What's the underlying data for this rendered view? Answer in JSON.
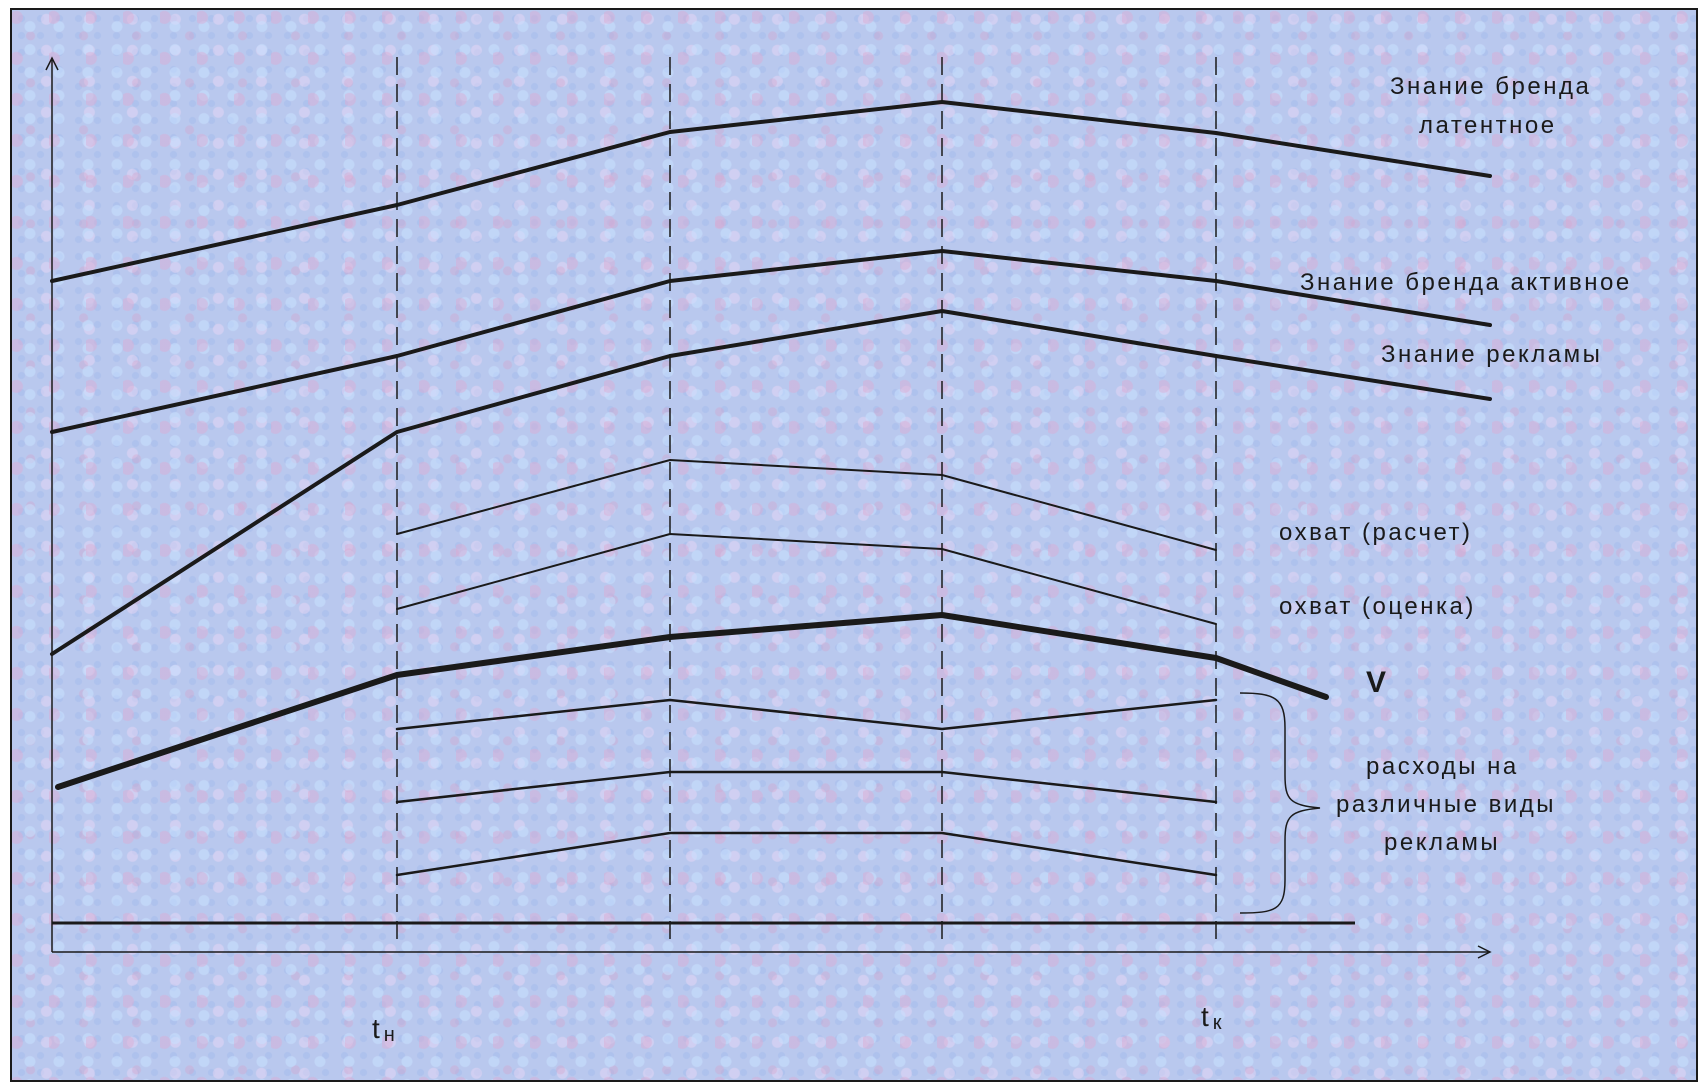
{
  "diagram": {
    "labels": {
      "brand_latent_1": "Знание бренда",
      "brand_latent_2": "латентное",
      "brand_active": "Знание бренда активное",
      "ad_awareness": "Знание рекламы",
      "reach_calc": "охват (расчет)",
      "reach_estimate": "охват (оценка)",
      "v": "V",
      "spend_1": "расходы на",
      "spend_2": "различные виды",
      "spend_3": "рекламы",
      "t_start_main": "t",
      "t_start_sub": "н",
      "t_end_main": "t",
      "t_end_sub": "к"
    }
  }
}
